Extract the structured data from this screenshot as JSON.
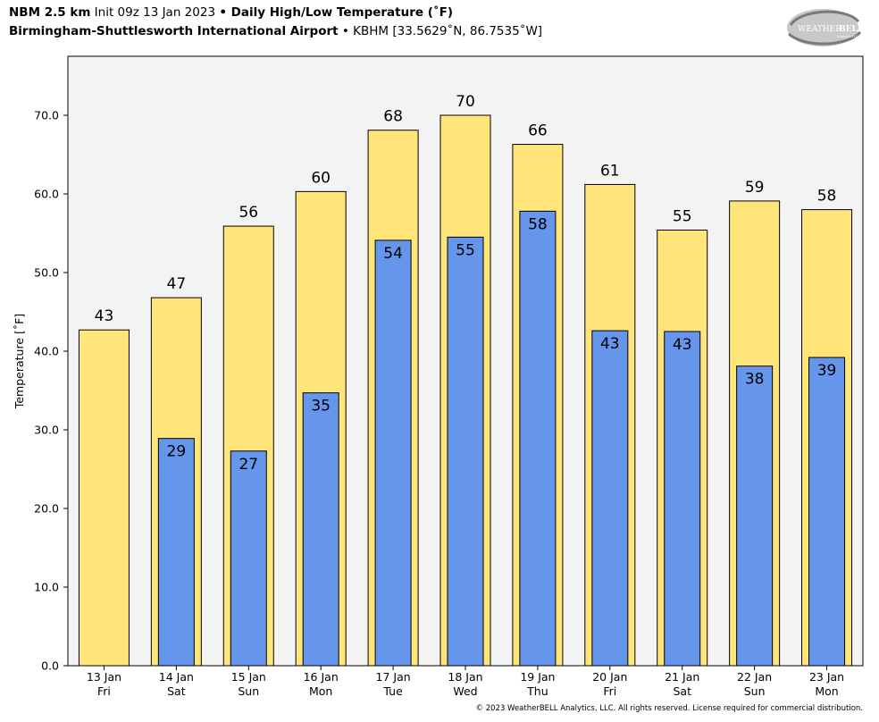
{
  "header": {
    "line1_bold_a": "NBM 2.5 km",
    "line1_normal": " Init 09z 13 Jan 2023 ",
    "line1_sep": "•",
    "line1_bold_b": " Daily High/Low Temperature (˚F)",
    "line2_bold": "Birmingham-Shuttlesworth International Airport",
    "line2_sep": " • ",
    "line2_normal": "KBHM [33.5629˚N, 86.7535˚W]"
  },
  "logo": {
    "text_a": "WEATHER",
    "text_b": "BELL",
    "sub": "Analytics LLC"
  },
  "footer": "© 2023 WeatherBELL Analytics, LLC. All rights reserved. License required for commercial distribution.",
  "colors": {
    "high_fill": "#ffe57a",
    "low_fill": "#6695ec",
    "plot_bg": "#f3f3f3",
    "border": "#000000"
  },
  "chart_data": {
    "type": "bar",
    "ylabel": "Temperature [˚F]",
    "ylim": [
      0,
      77.5
    ],
    "yticks": [
      0,
      10,
      20,
      30,
      40,
      50,
      60,
      70
    ],
    "ytick_labels": [
      "0.0",
      "10.0",
      "20.0",
      "30.0",
      "40.0",
      "50.0",
      "60.0",
      "70.0"
    ],
    "categories": [
      {
        "date": "13 Jan",
        "day": "Fri"
      },
      {
        "date": "14 Jan",
        "day": "Sat"
      },
      {
        "date": "15 Jan",
        "day": "Sun"
      },
      {
        "date": "16 Jan",
        "day": "Mon"
      },
      {
        "date": "17 Jan",
        "day": "Tue"
      },
      {
        "date": "18 Jan",
        "day": "Wed"
      },
      {
        "date": "19 Jan",
        "day": "Thu"
      },
      {
        "date": "20 Jan",
        "day": "Fri"
      },
      {
        "date": "21 Jan",
        "day": "Sat"
      },
      {
        "date": "22 Jan",
        "day": "Sun"
      },
      {
        "date": "23 Jan",
        "day": "Mon"
      }
    ],
    "series": [
      {
        "values": [
          42.7,
          46.8,
          55.9,
          60.3,
          68.1,
          70.0,
          66.3,
          61.2,
          55.4,
          59.1,
          58.0
        ],
        "labels": [
          "43",
          "47",
          "56",
          "60",
          "68",
          "70",
          "66",
          "61",
          "55",
          "59",
          "58"
        ]
      },
      {
        "values": [
          null,
          28.9,
          27.3,
          34.7,
          54.1,
          54.5,
          57.8,
          42.6,
          42.5,
          38.1,
          39.2
        ],
        "labels": [
          "",
          "29",
          "27",
          "35",
          "54",
          "55",
          "58",
          "43",
          "43",
          "38",
          "39"
        ]
      }
    ]
  }
}
